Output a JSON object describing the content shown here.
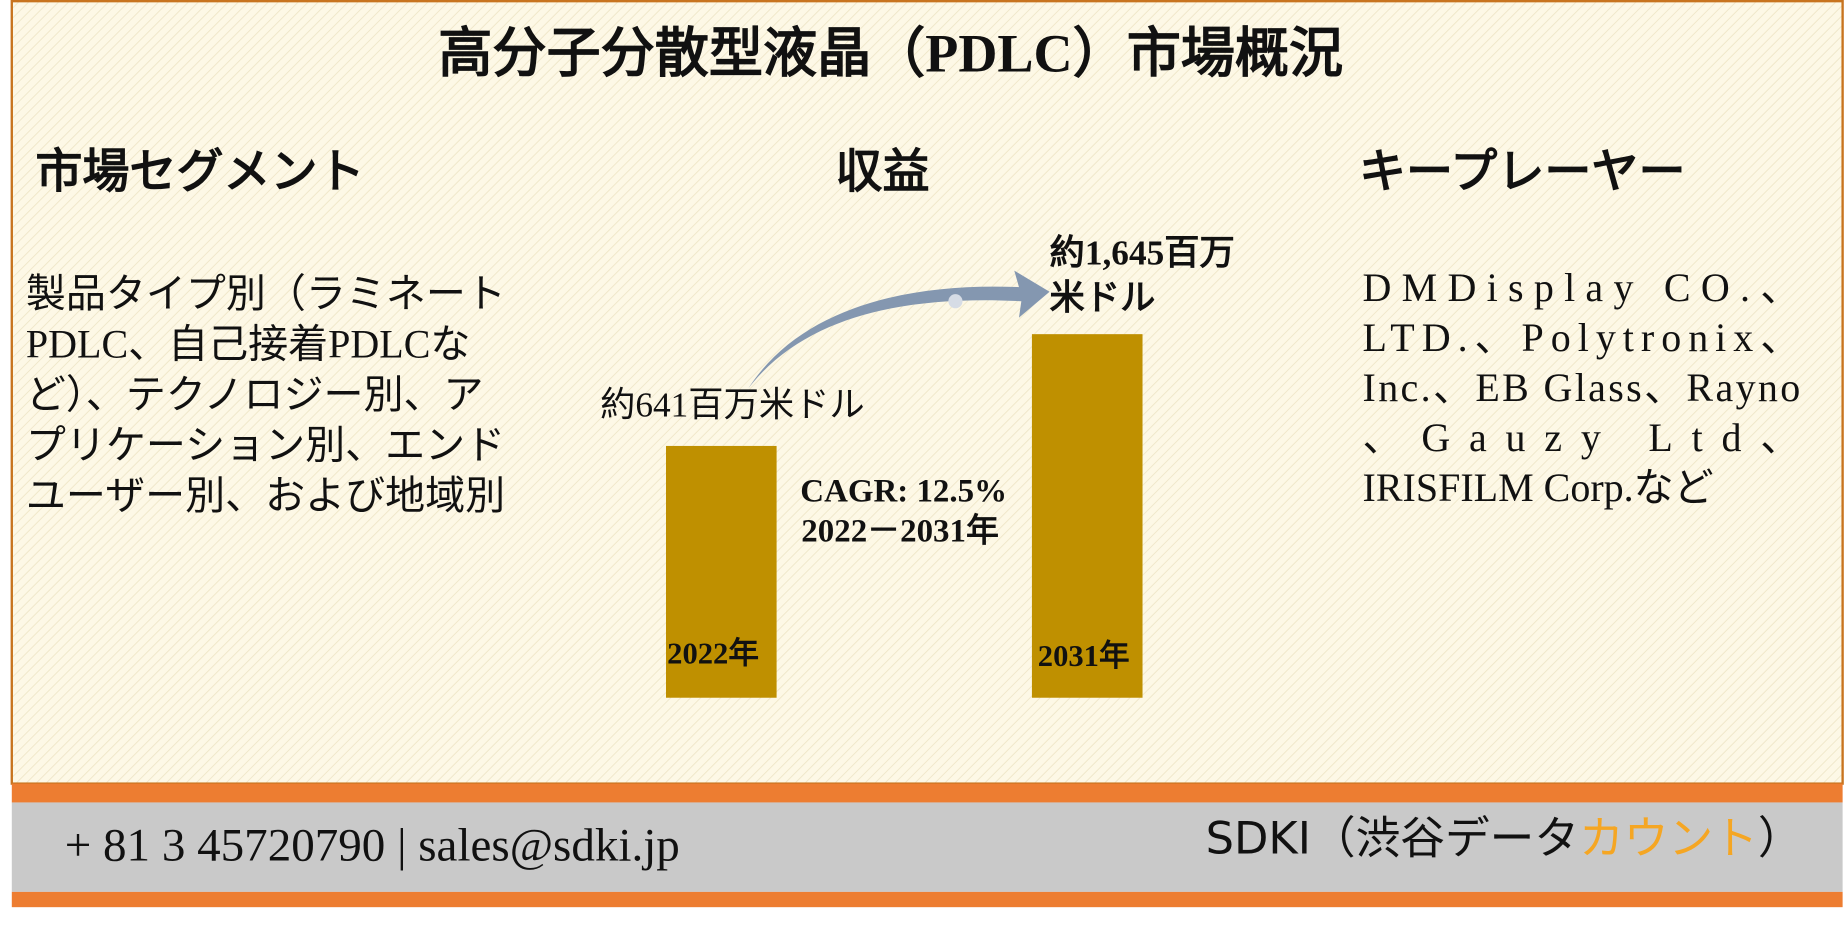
{
  "title": "高分子分散型液晶（PDLC）市場概況",
  "segment": {
    "heading": "市場セグメント",
    "lines": [
      "製品タイプ別（ラミネート",
      "PDLC、自己接着PDLCな",
      "ど）、テクノロジー別、ア",
      "プリケーション別、エンド",
      "ユーザー別、および地域別"
    ]
  },
  "revenue": {
    "heading": "収益",
    "start_label": "約641百万米ドル",
    "end_label": [
      "約1,645百万",
      "米ドル"
    ],
    "start_year": "2022年",
    "end_year": "2031年",
    "cagr": [
      "CAGR: 12.5%",
      "2022－2031年"
    ]
  },
  "players": {
    "heading": "キープレーヤー",
    "lines": [
      "DMDisplay CO.、",
      "LTD.、Polytronix、",
      "Inc.、EB Glass、Rayno",
      "、Gauzy Ltd、",
      "IRISFILM Corp.など"
    ]
  },
  "footer": {
    "contact": "+ 81 3 45720790 | sales@sdki.jp",
    "brand": "SDKI（渋谷データ",
    "brand_highlight": "カウント",
    "brand_end": "）"
  }
}
